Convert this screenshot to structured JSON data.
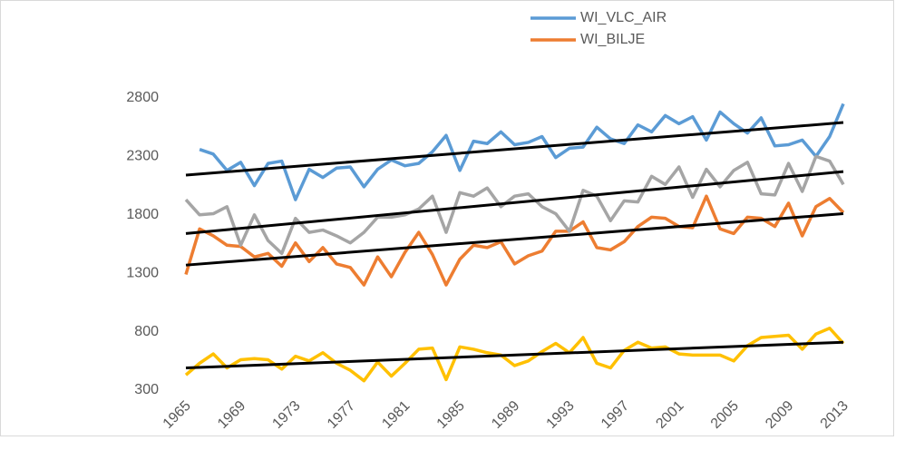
{
  "chart_data": {
    "type": "line",
    "categories": [
      "1965",
      null,
      null,
      null,
      "1969",
      null,
      null,
      null,
      "1973",
      null,
      null,
      null,
      "1977",
      null,
      null,
      null,
      "1981",
      null,
      null,
      null,
      "1985",
      null,
      null,
      null,
      "1989",
      null,
      null,
      null,
      "1993",
      null,
      null,
      null,
      "1997",
      null,
      null,
      null,
      "2001",
      null,
      null,
      null,
      "2005",
      null,
      null,
      null,
      "2009",
      null,
      null,
      null,
      "2013"
    ],
    "ylim": [
      300,
      2800
    ],
    "yticks": [
      300,
      800,
      1300,
      1800,
      2300,
      2800
    ],
    "series": [
      {
        "name": "WI_VLC_AIR",
        "color": "#5b9bd5",
        "values": [
          null,
          2360,
          2320,
          2180,
          2250,
          2050,
          2240,
          2260,
          1930,
          2190,
          2120,
          2200,
          2210,
          2040,
          2190,
          2270,
          2220,
          2240,
          2340,
          2480,
          2180,
          2430,
          2410,
          2510,
          2400,
          2420,
          2470,
          2290,
          2370,
          2380,
          2550,
          2450,
          2410,
          2570,
          2510,
          2650,
          2580,
          2640,
          2440,
          2680,
          2580,
          2500,
          2630,
          2390,
          2400,
          2440,
          2300,
          2470,
          2750
        ]
      },
      {
        "name": "WI_BILJE",
        "color": "#ed7d31",
        "values": [
          1290,
          1680,
          1620,
          1540,
          1530,
          1440,
          1470,
          1360,
          1560,
          1400,
          1520,
          1380,
          1350,
          1200,
          1440,
          1270,
          1480,
          1650,
          1460,
          1200,
          1420,
          1540,
          1520,
          1570,
          1380,
          1450,
          1490,
          1660,
          1660,
          1740,
          1520,
          1500,
          1570,
          1700,
          1780,
          1770,
          1700,
          1690,
          1960,
          1680,
          1640,
          1780,
          1770,
          1700,
          1900,
          1620,
          1870,
          1940,
          1820
        ]
      },
      {
        "color": "#a5a5a5",
        "values": [
          1930,
          1800,
          1810,
          1870,
          1540,
          1800,
          1580,
          1470,
          1770,
          1650,
          1670,
          1620,
          1560,
          1650,
          1780,
          1780,
          1800,
          1850,
          1960,
          1650,
          1990,
          1960,
          2030,
          1870,
          1960,
          1980,
          1870,
          1810,
          1660,
          2010,
          1960,
          1750,
          1920,
          1910,
          2130,
          2060,
          2210,
          1950,
          2190,
          2040,
          2180,
          2250,
          1980,
          1970,
          2240,
          2000,
          2300,
          2260,
          2060
        ]
      },
      {
        "color": "#ffc000",
        "values": [
          430,
          530,
          610,
          490,
          560,
          570,
          560,
          480,
          590,
          550,
          620,
          530,
          470,
          380,
          540,
          420,
          530,
          650,
          660,
          390,
          670,
          650,
          620,
          600,
          510,
          550,
          630,
          700,
          620,
          750,
          530,
          490,
          640,
          710,
          660,
          670,
          610,
          600,
          600,
          600,
          550,
          680,
          750,
          760,
          770,
          650,
          780,
          830,
          700
        ]
      }
    ],
    "trendlines": [
      {
        "color": "#000000",
        "values": [
          2140,
          2590
        ]
      },
      {
        "color": "#000000",
        "values": [
          1370,
          1810
        ]
      },
      {
        "color": "#000000",
        "values": [
          1640,
          2170
        ]
      },
      {
        "color": "#000000",
        "values": [
          490,
          710
        ]
      }
    ]
  }
}
